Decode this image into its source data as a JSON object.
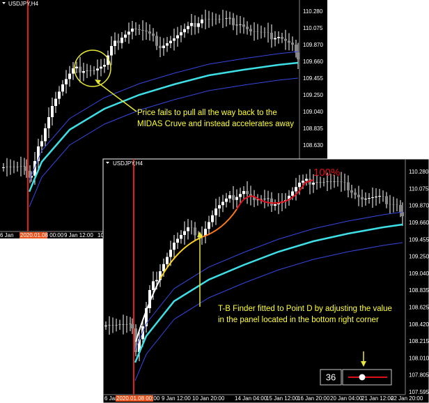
{
  "top_chart": {
    "symbol": "USDJPY,H4",
    "price_labels": [
      "110.280",
      "110.075",
      "109.870",
      "109.660",
      "109.455",
      "109.250",
      "109.040",
      "108.835",
      "108.630"
    ],
    "time_labels": [
      "6 Jan",
      "2020.01.08 00:00",
      "9 Jan 12:00",
      "10"
    ],
    "annotation": [
      "Price fails to pull all the way back to the",
      "MIDAS Cruve and instead accelerates away"
    ]
  },
  "bottom_chart": {
    "symbol": "USDJPY,H4",
    "price_labels": [
      "110.280",
      "110.075",
      "109.870",
      "109.660",
      "109.455",
      "109.250",
      "109.040",
      "108.835",
      "108.625",
      "108.420",
      "108.215",
      "108.010",
      "107.805",
      "107.595"
    ],
    "time_labels": [
      "6 Jan",
      "2020.01.08 00:00",
      "9 Jan 12:00",
      "10 Jan 20:00",
      "14 Jan 04:00",
      "15 Jan 12:00",
      "16 Jan 20:00",
      "20 Jan 04:00",
      "21 Jan 12:00",
      "22 Jan 20:00"
    ],
    "peak_label": "100%",
    "annotation": [
      "T-B Finder fitted to Point D by adjusting the value",
      "in the panel located in the bottom right corner"
    ],
    "panel": {
      "value": 36
    }
  }
}
